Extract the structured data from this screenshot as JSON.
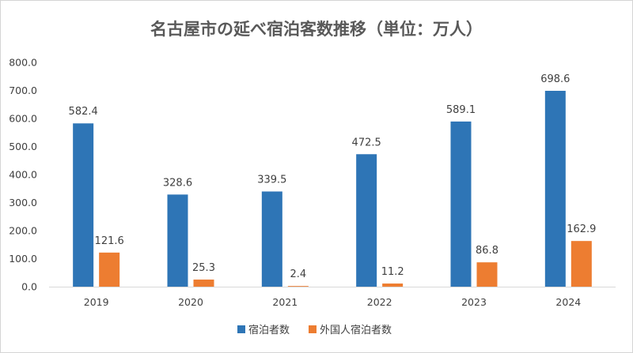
{
  "chart_data": {
    "type": "bar",
    "title": "名古屋市の延べ宿泊客数推移（単位：万人）",
    "categories": [
      "2019",
      "2020",
      "2021",
      "2022",
      "2023",
      "2024"
    ],
    "series": [
      {
        "name": "宿泊者数",
        "color": "#2e75b6",
        "values": [
          582.4,
          328.6,
          339.5,
          472.5,
          589.1,
          698.6
        ],
        "labels": [
          "582.4",
          "328.6",
          "339.5",
          "472.5",
          "589.1",
          "698.6"
        ]
      },
      {
        "name": "外国人宿泊者数",
        "color": "#ed7d31",
        "values": [
          121.6,
          25.3,
          2.4,
          11.2,
          86.8,
          162.9
        ],
        "labels": [
          "121.6",
          "25.3",
          "2.4",
          "11.2",
          "86.8",
          "162.9"
        ]
      }
    ],
    "ylim": [
      0,
      800
    ],
    "yticks": [
      "0.0",
      "100.0",
      "200.0",
      "300.0",
      "400.0",
      "500.0",
      "600.0",
      "700.0",
      "800.0"
    ],
    "grid": false,
    "legend_position": "bottom"
  }
}
